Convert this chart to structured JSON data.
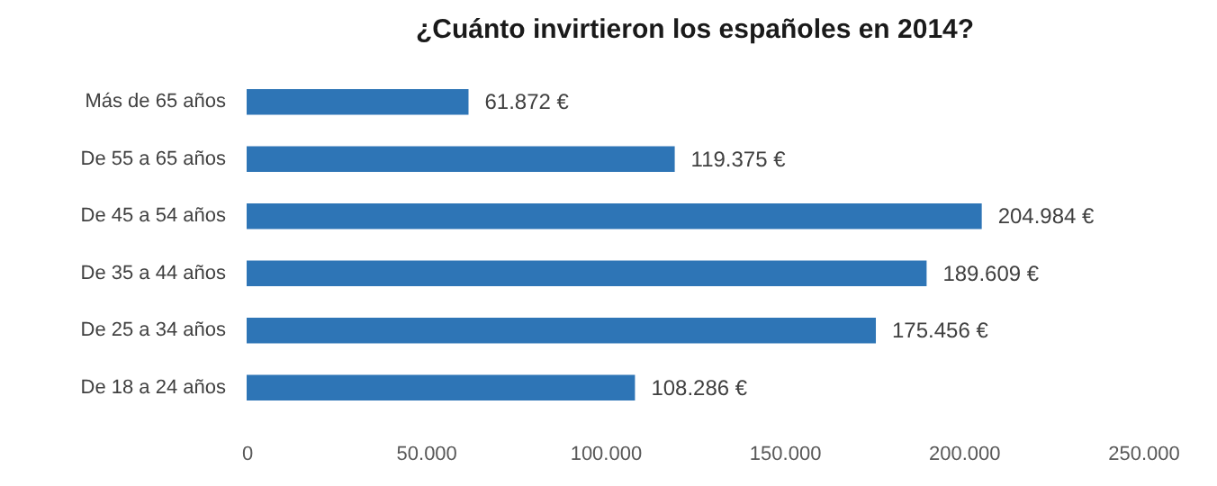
{
  "chart_data": {
    "type": "bar",
    "orientation": "horizontal",
    "title": "¿Cuánto invirtieron los españoles en 2014?",
    "categories": [
      "Más de 65 años",
      "De 55 a 65 años",
      "De 45 a 54 años",
      "De 35 a 44 años",
      "De 25 a 34 años",
      "De 18 a 24 años"
    ],
    "values": [
      61872,
      119375,
      204984,
      189609,
      175456,
      108286
    ],
    "value_labels": [
      "61.872 €",
      "119.375 €",
      "204.984 €",
      "189.609 €",
      "175.456 €",
      "108.286 €"
    ],
    "color": "#2e75b6",
    "xlim": [
      0,
      250000
    ],
    "xticks": [
      0,
      {
        "value": 50000,
        "label": "50.000"
      },
      {
        "value": 100000,
        "label": "100.000"
      },
      {
        "value": 150000,
        "label": "150.000"
      },
      {
        "value": 200000,
        "label": "200.000"
      },
      {
        "value": 250000,
        "label": "250.000"
      }
    ],
    "grid": false
  }
}
